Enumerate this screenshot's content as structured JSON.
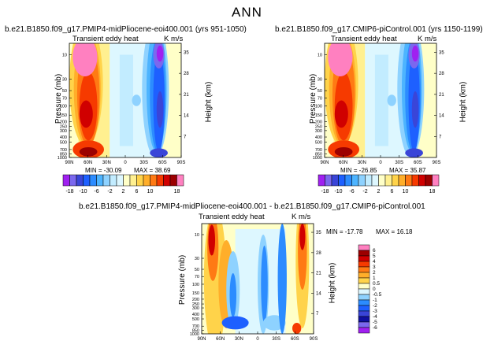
{
  "figure_title": "ANN",
  "chart_data": [
    {
      "type": "contour",
      "title": "b.e21.B1850.f09_g17.PMIP4-midPliocene-eoi400.001  (yrs 951-1050)",
      "subtitle": "Transient eddy heat",
      "units": "K m/s",
      "xlabel": "",
      "ylabel": "Pressure (mb)",
      "ylabel_right": "Height (km)",
      "x_ticks": [
        "90N",
        "60N",
        "30N",
        "0",
        "30S",
        "60S",
        "90S"
      ],
      "y_ticks": [
        "10",
        "30",
        "50",
        "70",
        "100",
        "150",
        "200",
        "250",
        "300",
        "400",
        "500",
        "700",
        "850",
        "1000"
      ],
      "height_ticks": [
        "35",
        "28",
        "21",
        "14",
        "7"
      ],
      "stats": {
        "min_label": "MIN = -30.09",
        "max_label": "MAX = 38.69",
        "min": -30.09,
        "max": 38.69
      }
    },
    {
      "type": "contour",
      "title": "b.e21.B1850.f09_g17.CMIP6-piControl.001  (yrs 1150-1199)",
      "subtitle": "Transient eddy heat",
      "units": "K m/s",
      "xlabel": "",
      "ylabel": "Pressure (mb)",
      "ylabel_right": "Height (km)",
      "x_ticks": [
        "90N",
        "60N",
        "30N",
        "0",
        "30S",
        "60S",
        "90S"
      ],
      "y_ticks": [
        "10",
        "30",
        "50",
        "70",
        "100",
        "150",
        "200",
        "250",
        "300",
        "400",
        "500",
        "700",
        "850",
        "1000"
      ],
      "height_ticks": [
        "35",
        "28",
        "21",
        "14",
        "7"
      ],
      "stats": {
        "min_label": "MIN = -26.85",
        "max_label": "MAX = 35.87",
        "min": -26.85,
        "max": 35.87
      }
    },
    {
      "type": "contour",
      "title": "b.e21.B1850.f09_g17.PMIP4-midPliocene-eoi400.001  -  b.e21.B1850.f09_g17.CMIP6-piControl.001",
      "subtitle": "Transient eddy heat",
      "units": "K m/s",
      "xlabel": "",
      "ylabel": "Pressure (mb)",
      "ylabel_right": "Height (km)",
      "x_ticks": [
        "90N",
        "60N",
        "30N",
        "0",
        "30S",
        "60S",
        "90S"
      ],
      "y_ticks": [
        "10",
        "30",
        "50",
        "70",
        "100",
        "150",
        "200",
        "250",
        "300",
        "400",
        "500",
        "700",
        "850",
        "1000"
      ],
      "height_ticks": [
        "35",
        "28",
        "21",
        "14",
        "7"
      ],
      "stats": {
        "min_label": "MIN = -17.78",
        "max_label": "MAX = 16.18",
        "min": -17.78,
        "max": 16.18
      }
    }
  ],
  "colorbar_main": {
    "labels": [
      "-18",
      "-10",
      "-6",
      "-2",
      "2",
      "6",
      "10",
      "18"
    ],
    "colors": [
      "#a020f0",
      "#7b68ee",
      "#3a45d8",
      "#1e60ff",
      "#2c8cff",
      "#4db4ff",
      "#8ed2ff",
      "#c2ecff",
      "#ddf7ff",
      "#ffffc8",
      "#fff090",
      "#ffd34a",
      "#ffae2a",
      "#ff7a14",
      "#f63a00",
      "#d00000",
      "#9c0000",
      "#ff80c0"
    ]
  },
  "colorbar_diff": {
    "labels": [
      "6",
      "5",
      "4",
      "3",
      "2",
      "1",
      "0.5",
      "0",
      "-0.5",
      "-1",
      "-2",
      "-3",
      "-4",
      "-5",
      "-6"
    ],
    "colors": [
      "#ff80c0",
      "#9c0000",
      "#d00000",
      "#f63a00",
      "#ff7a14",
      "#ffae2a",
      "#ffd34a",
      "#ffffc8",
      "#ddf7ff",
      "#8ed2ff",
      "#2c8cff",
      "#1e60ff",
      "#3a45d8",
      "#1010a0",
      "#7b68ee",
      "#a020f0"
    ]
  }
}
